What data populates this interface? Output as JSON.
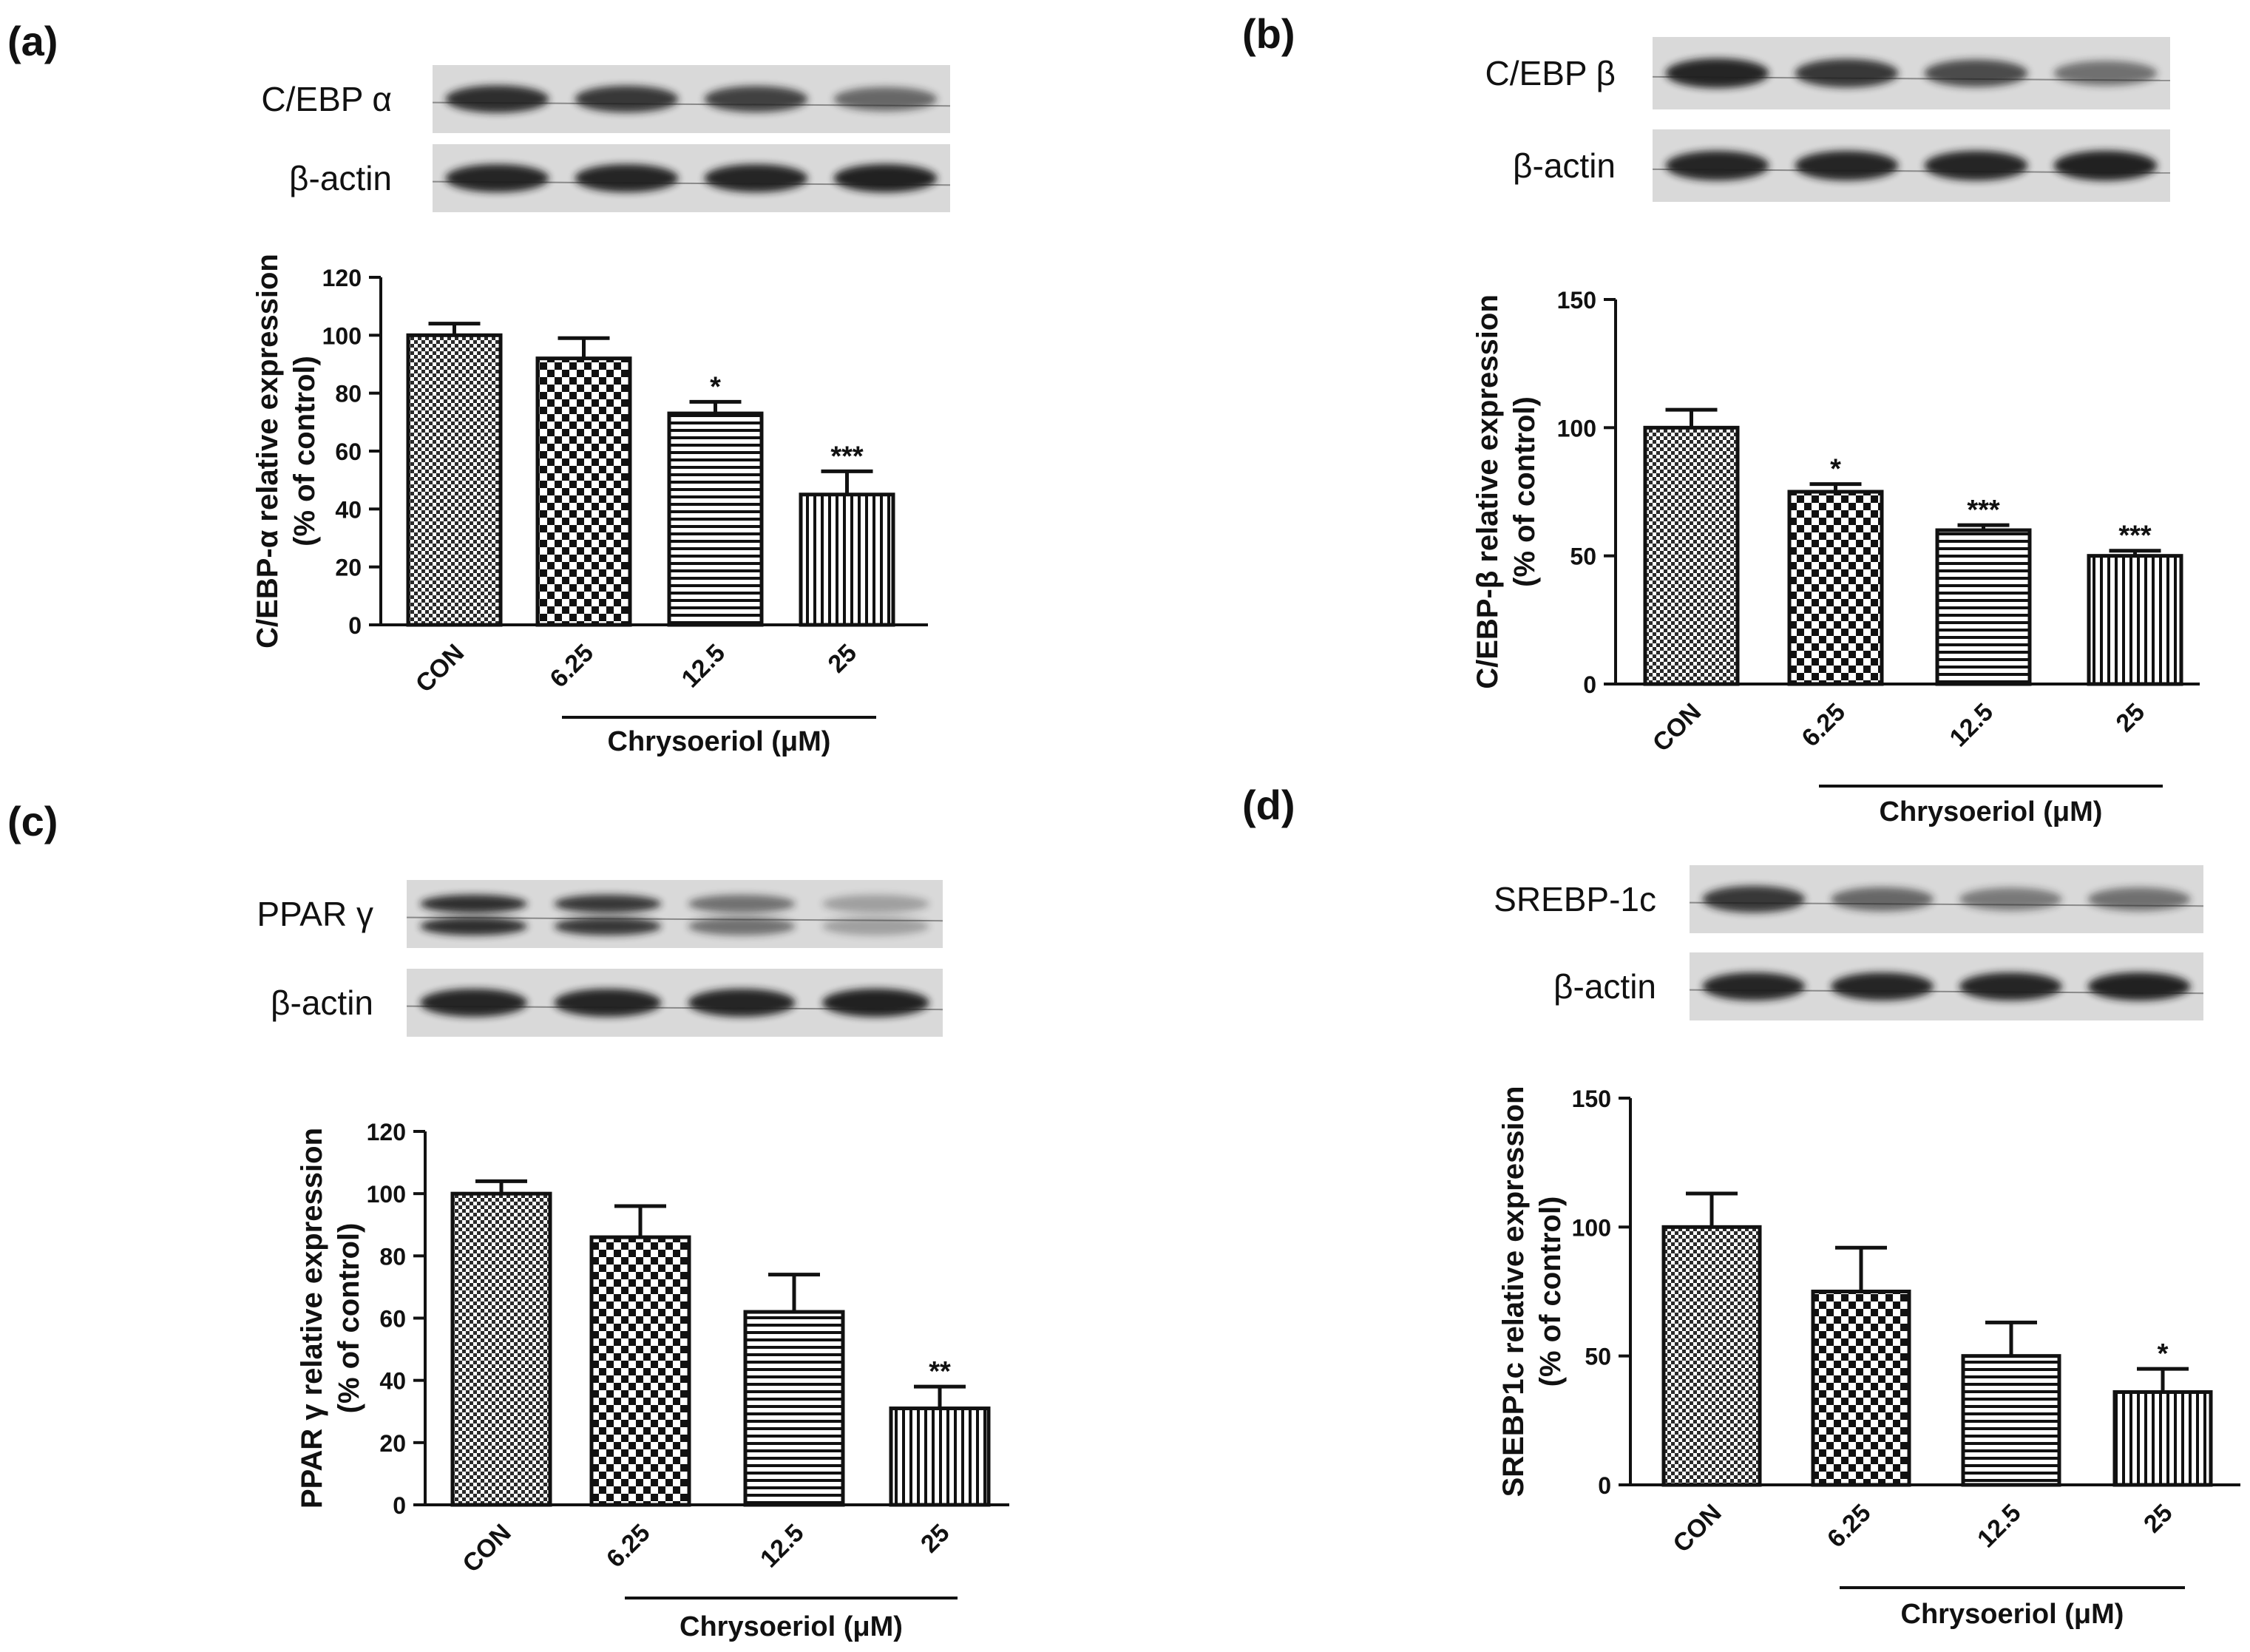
{
  "figure": {
    "colors": {
      "ink": "#111111",
      "blot_bg": "#d9d9d9",
      "band": "#1f1f1f",
      "bar_fill": "#ffffff"
    }
  },
  "chart_data": [
    {
      "type": "bar",
      "panel_label": "(a)",
      "blots": [
        {
          "label": "C/EBP α",
          "band_strength": [
            0.9,
            0.85,
            0.8,
            0.6
          ]
        },
        {
          "label": "β-actin",
          "band_strength": [
            0.95,
            0.95,
            0.95,
            0.97
          ]
        }
      ],
      "categories": [
        "CON",
        "6.25",
        "12.5",
        "25"
      ],
      "values": [
        100,
        92,
        73,
        45
      ],
      "errors": [
        4,
        7,
        4,
        8
      ],
      "significance": [
        "",
        "",
        "*",
        "***"
      ],
      "patterns": [
        "fine-check",
        "coarse-check",
        "horizontal",
        "vertical"
      ],
      "ylabel": "C/EBP-α relative expression\n(% of control)",
      "xlabel": "Chrysoeriol (μM)",
      "ylim": [
        0,
        120
      ],
      "yticks": [
        0,
        20,
        40,
        60,
        80,
        100,
        120
      ],
      "grid": false,
      "legend": "none"
    },
    {
      "type": "bar",
      "panel_label": "(b)",
      "blots": [
        {
          "label": "C/EBP β",
          "band_strength": [
            0.95,
            0.85,
            0.75,
            0.55
          ]
        },
        {
          "label": "β-actin",
          "band_strength": [
            0.95,
            0.95,
            0.95,
            0.97
          ]
        }
      ],
      "categories": [
        "CON",
        "6.25",
        "12.5",
        "25"
      ],
      "values": [
        100,
        75,
        60,
        50
      ],
      "errors": [
        7,
        3,
        2,
        2
      ],
      "significance": [
        "",
        "*",
        "***",
        "***"
      ],
      "patterns": [
        "fine-check",
        "coarse-check",
        "horizontal",
        "vertical"
      ],
      "ylabel": "C/EBP-β relative expression\n(% of control)",
      "xlabel": "Chrysoeriol (μM)",
      "ylim": [
        0,
        150
      ],
      "yticks": [
        0,
        50,
        100,
        150
      ],
      "grid": false,
      "legend": "none"
    },
    {
      "type": "bar",
      "panel_label": "(c)",
      "blots": [
        {
          "label": "PPAR γ",
          "band_strength": [
            0.9,
            0.85,
            0.55,
            0.3
          ],
          "doublet": true
        },
        {
          "label": "β-actin",
          "band_strength": [
            0.95,
            0.95,
            0.95,
            0.97
          ]
        }
      ],
      "categories": [
        "CON",
        "6.25",
        "12.5",
        "25"
      ],
      "values": [
        100,
        86,
        62,
        31
      ],
      "errors": [
        4,
        10,
        12,
        7
      ],
      "significance": [
        "",
        "",
        "",
        "**"
      ],
      "patterns": [
        "fine-check",
        "coarse-check",
        "horizontal",
        "vertical"
      ],
      "ylabel": "PPAR γ relative expression\n(% of control)",
      "xlabel": "Chrysoeriol (μM)",
      "ylim": [
        0,
        120
      ],
      "yticks": [
        0,
        20,
        40,
        60,
        80,
        100,
        120
      ],
      "grid": false,
      "legend": "none"
    },
    {
      "type": "bar",
      "panel_label": "(d)",
      "blots": [
        {
          "label": "SREBP-1c",
          "band_strength": [
            0.85,
            0.6,
            0.5,
            0.55
          ]
        },
        {
          "label": "β-actin",
          "band_strength": [
            0.95,
            0.95,
            0.95,
            0.97
          ]
        }
      ],
      "categories": [
        "CON",
        "6.25",
        "12.5",
        "25"
      ],
      "values": [
        100,
        75,
        50,
        36
      ],
      "errors": [
        13,
        17,
        13,
        9
      ],
      "significance": [
        "",
        "",
        "",
        "*"
      ],
      "patterns": [
        "fine-check",
        "coarse-check",
        "horizontal",
        "vertical"
      ],
      "ylabel": "SREBP1c relative expression\n(% of control)",
      "xlabel": "Chrysoeriol (μM)",
      "ylim": [
        0,
        150
      ],
      "yticks": [
        0,
        50,
        100,
        150
      ],
      "grid": false,
      "legend": "none"
    }
  ]
}
